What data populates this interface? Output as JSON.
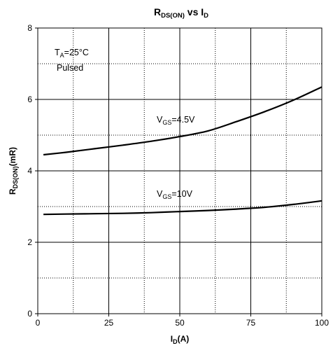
{
  "chart_data": {
    "type": "line",
    "title": {
      "main": "R",
      "main_sub": "DS(ON)",
      "rest": " vs I",
      "rest_sub": "D"
    },
    "xlabel": {
      "main": "I",
      "sub": "D",
      "rest": "(A)"
    },
    "ylabel": {
      "main": "R",
      "sub": "DS(ON)",
      "rest": "(mR)"
    },
    "xlim": [
      0,
      100
    ],
    "ylim": [
      0,
      8
    ],
    "x_ticks": [
      0,
      25,
      50,
      75,
      100
    ],
    "y_ticks": [
      0,
      2,
      4,
      6,
      8
    ],
    "x_minor_grid": [
      12.5,
      37.5,
      62.5,
      87.5
    ],
    "y_minor_grid": [
      1,
      3,
      5,
      7
    ],
    "grid": true,
    "conditions": [
      {
        "main": "T",
        "sub": "A",
        "rest": "=25°C"
      },
      {
        "main": "Pulsed",
        "sub": "",
        "rest": ""
      }
    ],
    "series": [
      {
        "label_main": "V",
        "label_sub": "GS",
        "label_rest": "=4.5V",
        "x": [
          2,
          10,
          20,
          30,
          40,
          50,
          60,
          70,
          80,
          90,
          100
        ],
        "y": [
          4.45,
          4.52,
          4.62,
          4.72,
          4.83,
          4.96,
          5.12,
          5.38,
          5.66,
          5.98,
          6.35
        ]
      },
      {
        "label_main": "V",
        "label_sub": "GS",
        "label_rest": "=10V",
        "x": [
          2,
          10,
          20,
          30,
          40,
          50,
          60,
          70,
          80,
          90,
          100
        ],
        "y": [
          2.78,
          2.79,
          2.8,
          2.81,
          2.83,
          2.86,
          2.89,
          2.93,
          2.98,
          3.06,
          3.16
        ]
      }
    ]
  }
}
